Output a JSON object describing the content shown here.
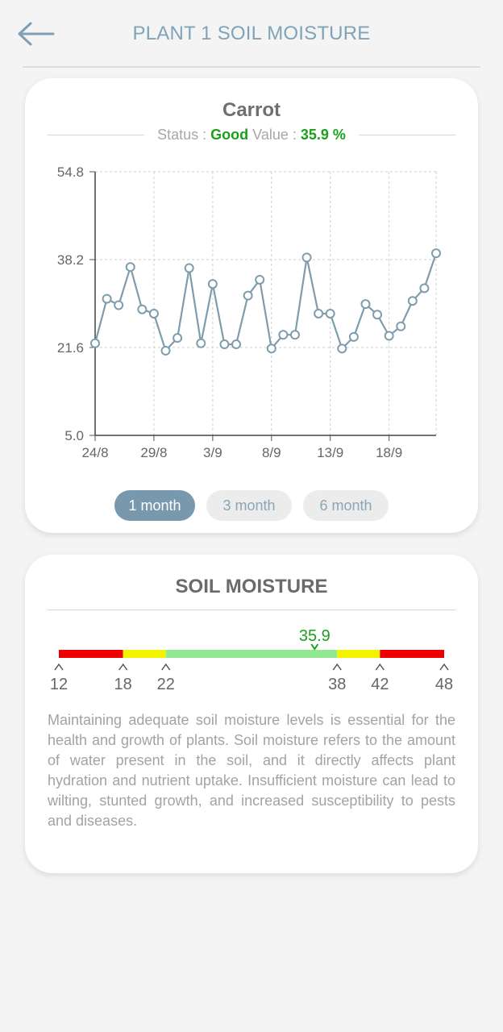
{
  "header": {
    "title": "PLANT 1 SOIL MOISTURE",
    "back_icon": "arrow-left-icon"
  },
  "plant": {
    "name": "Carrot",
    "status_label": "Status :",
    "status_value": "Good",
    "value_label": "Value :",
    "value_text": "35.9 %"
  },
  "chart_data": {
    "type": "line",
    "y_ticks": [
      "54.8",
      "38.2",
      "21.6",
      "5.0"
    ],
    "ylim": [
      5.0,
      54.8
    ],
    "x_ticks": [
      "24/8",
      "29/8",
      "3/9",
      "8/9",
      "13/9",
      "18/9"
    ],
    "x_tick_index": [
      0,
      5,
      10,
      15,
      20,
      25
    ],
    "grid": true,
    "line_color": "#7f9cad",
    "series": [
      {
        "values": [
          22.4,
          30.8,
          29.6,
          36.8,
          28.8,
          28.0,
          21.0,
          23.4,
          36.6,
          22.4,
          33.6,
          22.2,
          22.2,
          31.4,
          34.4,
          21.4,
          24.0,
          24.0,
          38.6,
          28.0,
          28.0,
          21.4,
          23.6,
          29.8,
          27.8,
          23.8,
          25.6,
          30.4,
          32.8,
          39.4
        ]
      }
    ]
  },
  "range_buttons": [
    {
      "label": "1 month",
      "active": true
    },
    {
      "label": "3 month",
      "active": false
    },
    {
      "label": "6 month",
      "active": false
    }
  ],
  "gauge": {
    "title": "SOIL MOISTURE",
    "current_value": "35.9",
    "current_number": 35.9,
    "min": 12,
    "max": 48,
    "tick_labels": [
      "12",
      "18",
      "22",
      "38",
      "42",
      "48"
    ],
    "tick_values": [
      12,
      18,
      22,
      38,
      42,
      48
    ],
    "segments": [
      {
        "from": 12,
        "to": 18,
        "color": "#ee0000"
      },
      {
        "from": 18,
        "to": 22,
        "color": "#f3f300"
      },
      {
        "from": 22,
        "to": 38,
        "color": "#90e890"
      },
      {
        "from": 38,
        "to": 42,
        "color": "#f3f300"
      },
      {
        "from": 42,
        "to": 48,
        "color": "#ee0000"
      }
    ],
    "value_color": "#1aa01a",
    "description": "Maintaining adequate soil moisture levels is essential for the health and growth of plants. Soil moisture refers to the amount of water present in the soil, and it directly affects plant hydration and nutrient uptake. Insufficient moisture can lead to wilting, stunted growth, and increased susceptibility to pests and diseases."
  }
}
